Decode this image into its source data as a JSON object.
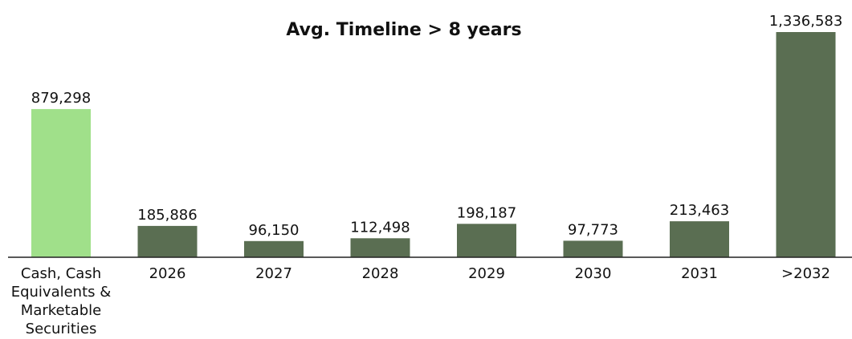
{
  "chart_data": {
    "type": "bar",
    "title": "Avg. Timeline > 8 years",
    "categories": [
      [
        "Cash, Cash",
        "Equivalents &",
        "Marketable",
        "Securities"
      ],
      [
        "2026"
      ],
      [
        "2027"
      ],
      [
        "2028"
      ],
      [
        "2029"
      ],
      [
        "2030"
      ],
      [
        "2031"
      ],
      [
        ">2032"
      ]
    ],
    "values": [
      879298,
      185886,
      96150,
      112498,
      198187,
      97773,
      213463,
      1336583
    ],
    "value_labels": [
      "879,298",
      "185,886",
      "96,150",
      "112,498",
      "198,187",
      "97,773",
      "213,463",
      "1,336,583"
    ],
    "colors": [
      "#a0e08a",
      "#5a6e52",
      "#5a6e52",
      "#5a6e52",
      "#5a6e52",
      "#5a6e52",
      "#5a6e52",
      "#5a6e52"
    ],
    "ylim": [
      0,
      1400000
    ],
    "grid": false,
    "legend": "none"
  }
}
